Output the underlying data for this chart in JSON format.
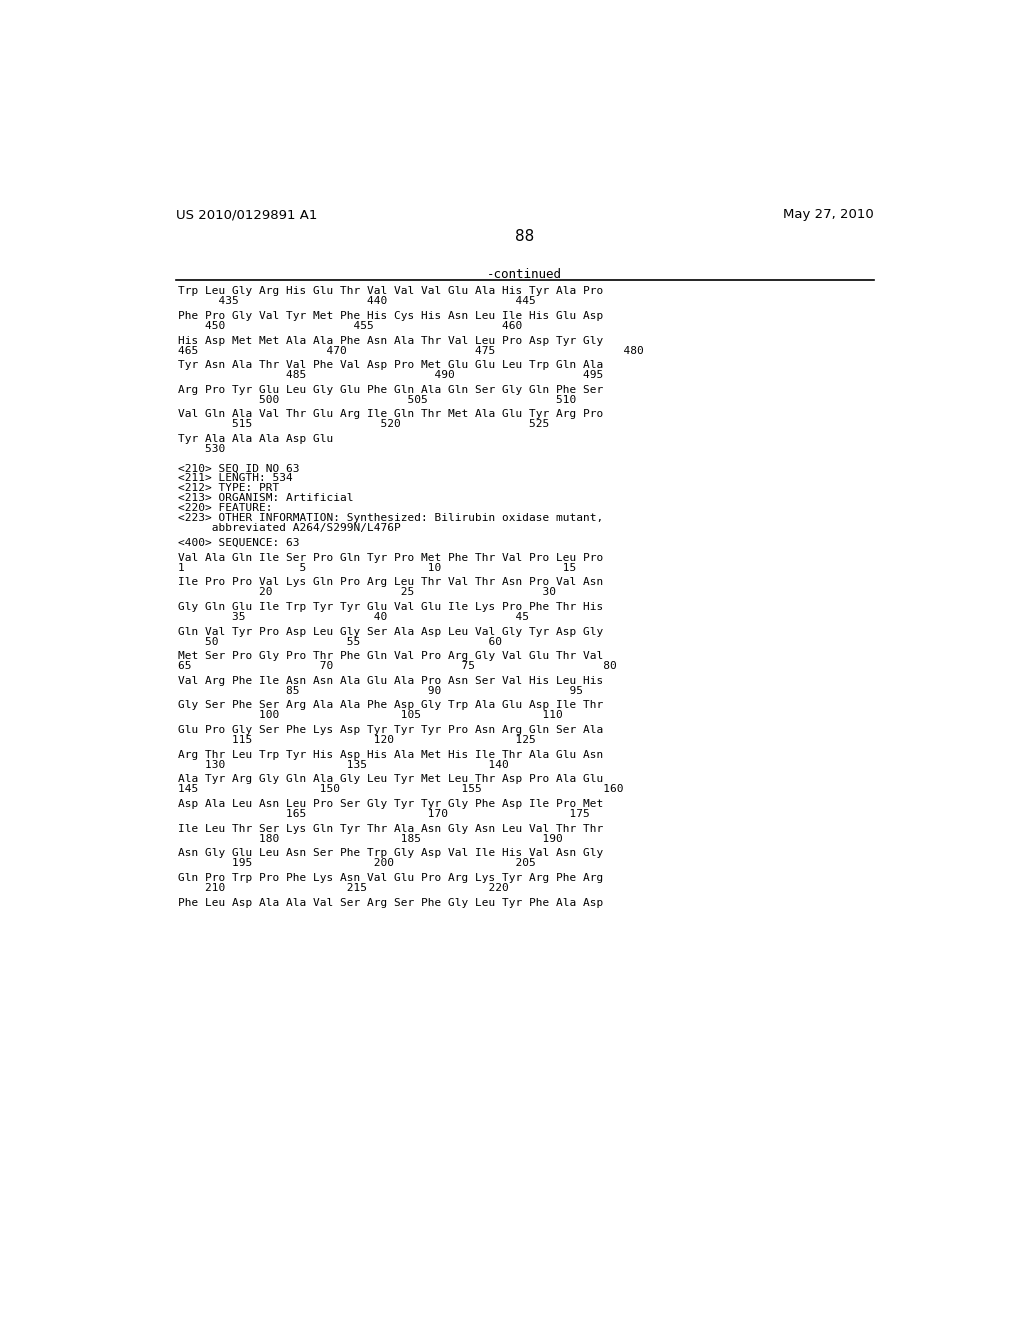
{
  "header_left": "US 2010/0129891 A1",
  "header_right": "May 27, 2010",
  "page_number": "88",
  "continued_label": "-continued",
  "background_color": "#ffffff",
  "text_color": "#000000",
  "body_lines": [
    "Trp Leu Gly Arg His Glu Thr Val Val Val Glu Ala His Tyr Ala Pro",
    "      435                   440                   445",
    "",
    "Phe Pro Gly Val Tyr Met Phe His Cys His Asn Leu Ile His Glu Asp",
    "    450                   455                   460",
    "",
    "His Asp Met Met Ala Ala Phe Asn Ala Thr Val Leu Pro Asp Tyr Gly",
    "465                   470                   475                   480",
    "",
    "Tyr Asn Ala Thr Val Phe Val Asp Pro Met Glu Glu Leu Trp Gln Ala",
    "                485                   490                   495",
    "",
    "Arg Pro Tyr Glu Leu Gly Glu Phe Gln Ala Gln Ser Gly Gln Phe Ser",
    "            500                   505                   510",
    "",
    "Val Gln Ala Val Thr Glu Arg Ile Gln Thr Met Ala Glu Tyr Arg Pro",
    "        515                   520                   525",
    "",
    "Tyr Ala Ala Ala Asp Glu",
    "    530",
    "",
    "",
    "<210> SEQ ID NO 63",
    "<211> LENGTH: 534",
    "<212> TYPE: PRT",
    "<213> ORGANISM: Artificial",
    "<220> FEATURE:",
    "<223> OTHER INFORMATION: Synthesized: Bilirubin oxidase mutant,",
    "     abbreviated A264/S299N/L476P",
    "",
    "<400> SEQUENCE: 63",
    "",
    "Val Ala Gln Ile Ser Pro Gln Tyr Pro Met Phe Thr Val Pro Leu Pro",
    "1                 5                  10                  15",
    "",
    "Ile Pro Pro Val Lys Gln Pro Arg Leu Thr Val Thr Asn Pro Val Asn",
    "            20                   25                   30",
    "",
    "Gly Gln Glu Ile Trp Tyr Tyr Glu Val Glu Ile Lys Pro Phe Thr His",
    "        35                   40                   45",
    "",
    "Gln Val Tyr Pro Asp Leu Gly Ser Ala Asp Leu Val Gly Tyr Asp Gly",
    "    50                   55                   60",
    "",
    "Met Ser Pro Gly Pro Thr Phe Gln Val Pro Arg Gly Val Glu Thr Val",
    "65                   70                   75                   80",
    "",
    "Val Arg Phe Ile Asn Asn Ala Glu Ala Pro Asn Ser Val His Leu His",
    "                85                   90                   95",
    "",
    "Gly Ser Phe Ser Arg Ala Ala Phe Asp Gly Trp Ala Glu Asp Ile Thr",
    "            100                  105                  110",
    "",
    "Glu Pro Gly Ser Phe Lys Asp Tyr Tyr Tyr Pro Asn Arg Gln Ser Ala",
    "        115                  120                  125",
    "",
    "Arg Thr Leu Trp Tyr His Asp His Ala Met His Ile Thr Ala Glu Asn",
    "    130                  135                  140",
    "",
    "Ala Tyr Arg Gly Gln Ala Gly Leu Tyr Met Leu Thr Asp Pro Ala Glu",
    "145                  150                  155                  160",
    "",
    "Asp Ala Leu Asn Leu Pro Ser Gly Tyr Tyr Gly Phe Asp Ile Pro Met",
    "                165                  170                  175",
    "",
    "Ile Leu Thr Ser Lys Gln Tyr Thr Ala Asn Gly Asn Leu Val Thr Thr",
    "            180                  185                  190",
    "",
    "Asn Gly Glu Leu Asn Ser Phe Trp Gly Asp Val Ile His Val Asn Gly",
    "        195                  200                  205",
    "",
    "Gln Pro Trp Pro Phe Lys Asn Val Glu Pro Arg Lys Tyr Arg Phe Arg",
    "    210                  215                  220",
    "",
    "Phe Leu Asp Ala Ala Val Ser Arg Ser Phe Gly Leu Tyr Phe Ala Asp"
  ]
}
